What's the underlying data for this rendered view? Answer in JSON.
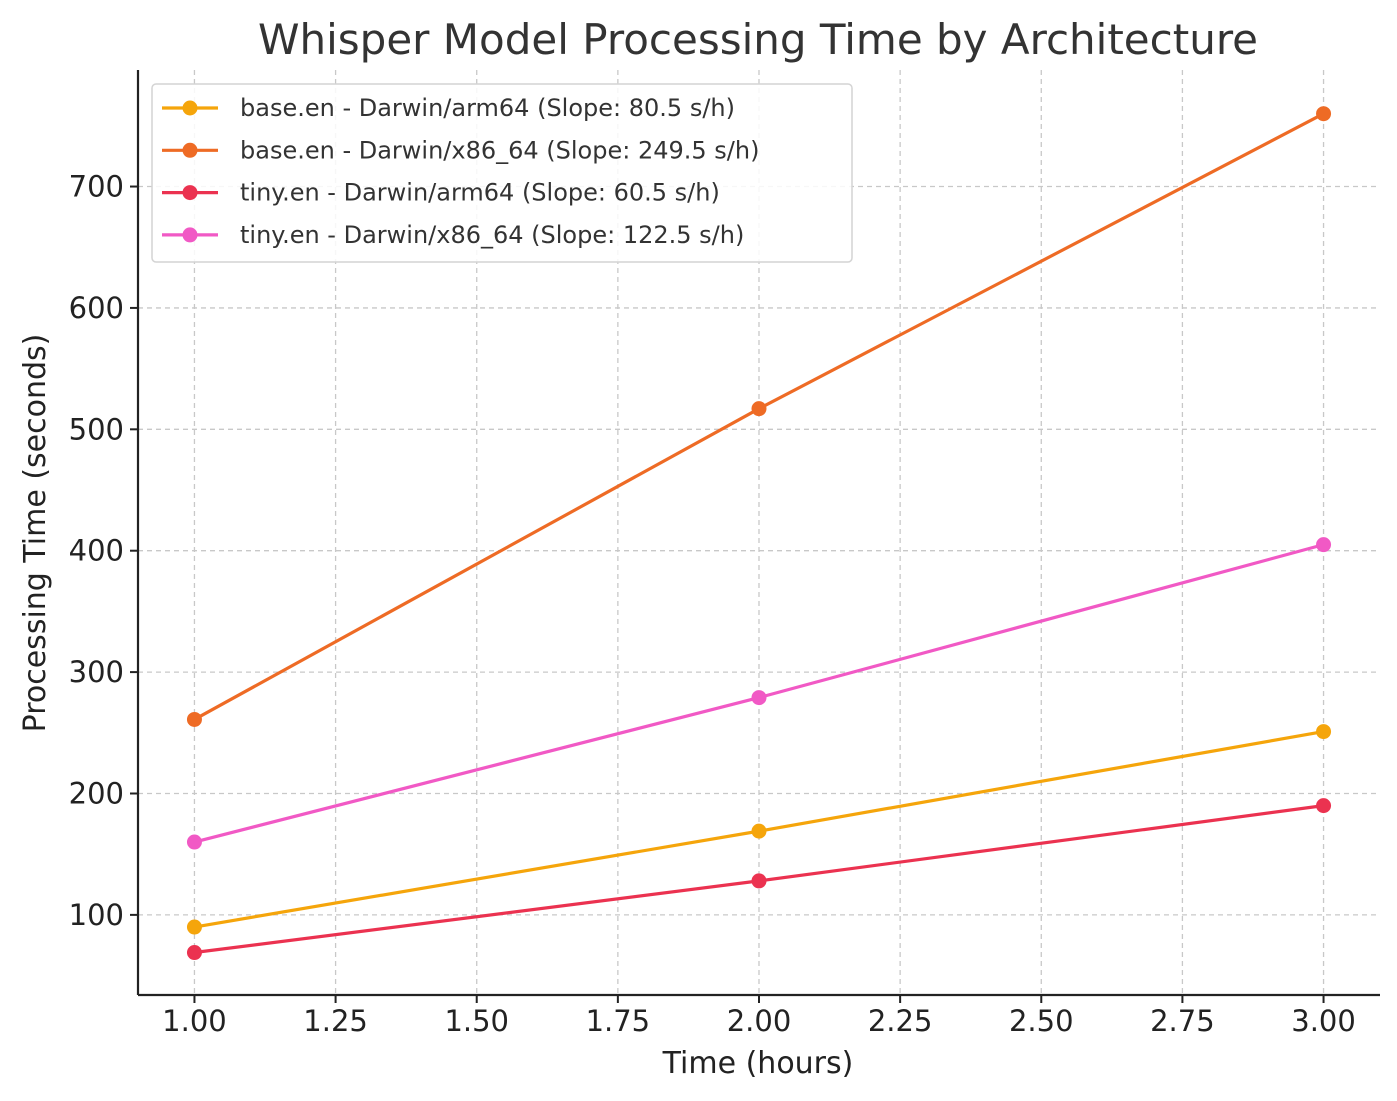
{
  "chart_data": {
    "type": "line",
    "title": "Whisper Model Processing Time by Architecture",
    "xlabel": "Time (hours)",
    "ylabel": "Processing Time (seconds)",
    "x": [
      1,
      2,
      3
    ],
    "xlim": [
      0.9,
      3.1
    ],
    "ylim": [
      34,
      796
    ],
    "xticks": [
      "1.00",
      "1.25",
      "1.50",
      "1.75",
      "2.00",
      "2.25",
      "2.50",
      "2.75",
      "3.00"
    ],
    "yticks": [
      "100",
      "200",
      "300",
      "400",
      "500",
      "600",
      "700"
    ],
    "grid": true,
    "legend_position": "top-left",
    "series": [
      {
        "name": "base.en - Darwin/arm64 (Slope: 80.5 s/h)",
        "color": "#F5A50B",
        "values": [
          90,
          169,
          251
        ]
      },
      {
        "name": "base.en - Darwin/x86_64 (Slope: 249.5 s/h)",
        "color": "#EE6B25",
        "values": [
          261,
          517,
          760
        ]
      },
      {
        "name": "tiny.en - Darwin/arm64 (Slope: 60.5 s/h)",
        "color": "#EB3250",
        "values": [
          69,
          128,
          190
        ]
      },
      {
        "name": "tiny.en - Darwin/x86_64 (Slope: 122.5 s/h)",
        "color": "#F159C5",
        "values": [
          160,
          279,
          405
        ]
      }
    ]
  }
}
